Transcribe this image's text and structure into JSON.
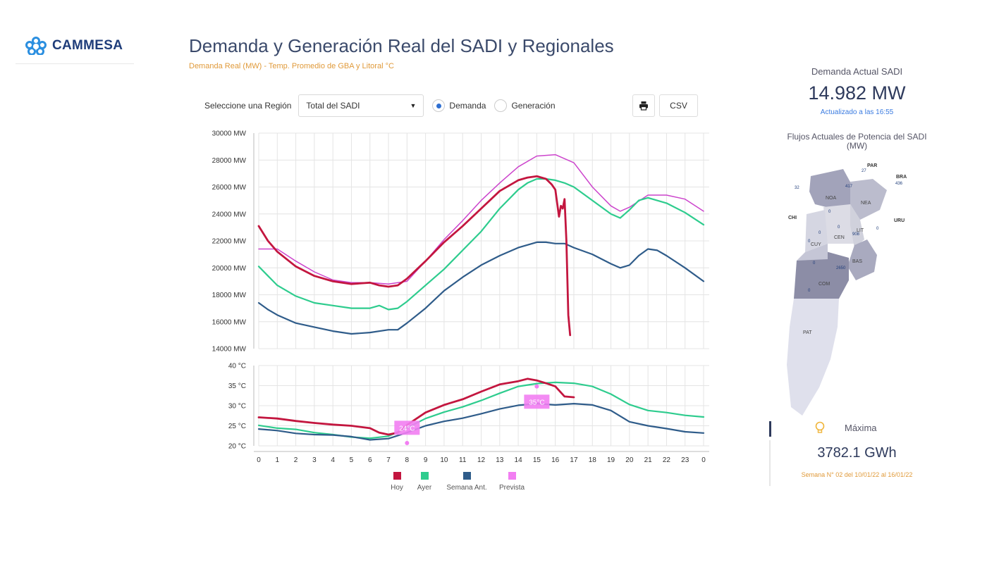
{
  "brand": {
    "name": "CAMMESA",
    "logo_icon": "flower-icon",
    "color": "#2b8fe0"
  },
  "header": {
    "title": "Demanda y Generación Real del SADI y Regionales",
    "subtitle": "Demanda Real (MW) - Temp. Promedio de GBA y Litoral °C"
  },
  "controls": {
    "region_label": "Seleccione una Región",
    "region_value": "Total del SADI",
    "radio_demand": "Demanda",
    "radio_generation": "Generación",
    "selected": "Demanda",
    "print_icon": "printer-icon",
    "csv_label": "CSV"
  },
  "chart_data": [
    {
      "type": "line",
      "ylim": [
        14000,
        30000
      ],
      "yticks": [
        "30000 MW",
        "28000 MW",
        "26000 MW",
        "24000 MW",
        "22000 MW",
        "20000 MW",
        "18000 MW",
        "16000 MW",
        "14000 MW"
      ],
      "ytick_values": [
        30000,
        28000,
        26000,
        24000,
        22000,
        20000,
        18000,
        16000,
        14000
      ],
      "grid": true,
      "series": [
        {
          "name": "Prevista",
          "color": "#cc44cc",
          "x": [
            0,
            1,
            2,
            3,
            4,
            5,
            6,
            7,
            8,
            9,
            10,
            11,
            12,
            13,
            14,
            15,
            16,
            17,
            18,
            19,
            19.5,
            20,
            21,
            22,
            23,
            24
          ],
          "y": [
            21400,
            21400,
            20500,
            19700,
            19100,
            18900,
            18900,
            18800,
            19000,
            20500,
            22100,
            23500,
            25000,
            26300,
            27500,
            28300,
            28400,
            27800,
            26000,
            24600,
            24200,
            24500,
            25400,
            25400,
            25100,
            24200
          ]
        },
        {
          "name": "Ayer",
          "color": "#2ecc8e",
          "x": [
            0,
            0.5,
            1,
            2,
            3,
            4,
            5,
            6,
            6.5,
            7,
            7.5,
            8,
            9,
            10,
            11,
            12,
            13,
            14,
            14.5,
            15,
            15.5,
            16,
            16.5,
            17,
            18,
            19,
            19.5,
            20,
            20.5,
            21,
            22,
            23,
            24
          ],
          "y": [
            20100,
            19400,
            18700,
            17900,
            17400,
            17200,
            17000,
            17000,
            17200,
            16900,
            17000,
            17500,
            18700,
            19900,
            21300,
            22700,
            24400,
            25800,
            26300,
            26600,
            26600,
            26500,
            26300,
            26000,
            25000,
            24000,
            23700,
            24300,
            25000,
            25200,
            24800,
            24100,
            23200
          ]
        },
        {
          "name": "Semana Ant.",
          "color": "#2f5c8a",
          "x": [
            0,
            0.5,
            1,
            2,
            3,
            4,
            5,
            6,
            7,
            7.5,
            8,
            9,
            10,
            11,
            12,
            13,
            14,
            15,
            15.5,
            16,
            16.5,
            17,
            18,
            19,
            19.5,
            20,
            20.5,
            21,
            21.5,
            22,
            23,
            24
          ],
          "y": [
            17400,
            16900,
            16500,
            15900,
            15600,
            15300,
            15100,
            15200,
            15400,
            15400,
            15900,
            17000,
            18300,
            19300,
            20200,
            20900,
            21500,
            21900,
            21900,
            21800,
            21800,
            21500,
            21000,
            20300,
            20000,
            20200,
            20900,
            21400,
            21300,
            20900,
            20000,
            19000
          ]
        },
        {
          "name": "Hoy",
          "color": "#c3163f",
          "x": [
            0,
            0.5,
            1,
            2,
            3,
            4,
            5,
            6,
            6.5,
            7,
            7.5,
            8,
            9,
            10,
            11,
            12,
            13,
            14,
            14.5,
            15,
            15.5,
            15.8,
            16,
            16.2,
            16.3,
            16.4,
            16.5,
            16.6,
            16.7,
            16.8
          ],
          "y": [
            23100,
            22000,
            21200,
            20100,
            19400,
            19000,
            18800,
            18900,
            18700,
            18600,
            18700,
            19200,
            20500,
            21900,
            23100,
            24400,
            25700,
            26500,
            26700,
            26800,
            26600,
            26200,
            25800,
            23800,
            24600,
            24400,
            25100,
            22000,
            16500,
            15000
          ]
        }
      ]
    },
    {
      "type": "line",
      "ylim": [
        20,
        40
      ],
      "yticks": [
        "40 °C",
        "35 °C",
        "30 °C",
        "25 °C",
        "20 °C"
      ],
      "ytick_values": [
        40,
        35,
        30,
        25,
        20
      ],
      "categories": [
        "0",
        "1",
        "2",
        "3",
        "4",
        "5",
        "6",
        "7",
        "8",
        "9",
        "10",
        "11",
        "12",
        "13",
        "14",
        "15",
        "16",
        "17",
        "18",
        "19",
        "20",
        "21",
        "22",
        "23",
        "0"
      ],
      "grid": true,
      "series": [
        {
          "name": "Ayer",
          "color": "#2ecc8e",
          "x": [
            0,
            1,
            2,
            3,
            4,
            5,
            6,
            7,
            8,
            9,
            10,
            11,
            12,
            13,
            14,
            15,
            16,
            17,
            18,
            19,
            20,
            21,
            22,
            23,
            24
          ],
          "y": [
            25.1,
            24.4,
            24.1,
            23.3,
            22.8,
            22.2,
            21.9,
            22.4,
            24.5,
            26.8,
            28.4,
            29.7,
            31.3,
            33.1,
            34.8,
            35.5,
            35.8,
            35.6,
            34.8,
            32.9,
            30.3,
            28.8,
            28.3,
            27.6,
            27.2
          ]
        },
        {
          "name": "Semana Ant.",
          "color": "#2f5c8a",
          "x": [
            0,
            1,
            2,
            3,
            4,
            5,
            6,
            7,
            8,
            9,
            10,
            11,
            12,
            13,
            14,
            15,
            16,
            17,
            18,
            19,
            20,
            21,
            22,
            23,
            24
          ],
          "y": [
            24.2,
            23.8,
            23.1,
            22.8,
            22.7,
            22.3,
            21.5,
            21.8,
            23.3,
            25.0,
            26.1,
            26.9,
            28.0,
            29.2,
            30.1,
            30.5,
            30.2,
            30.5,
            30.2,
            28.8,
            26.0,
            25.0,
            24.3,
            23.5,
            23.2
          ]
        },
        {
          "name": "Hoy",
          "color": "#c3163f",
          "x": [
            0,
            1,
            2,
            3,
            4,
            5,
            6,
            6.5,
            7,
            7.5,
            8,
            9,
            10,
            11,
            12,
            13,
            14,
            14.5,
            15,
            15.5,
            16,
            16.5,
            17
          ],
          "y": [
            27.1,
            26.8,
            26.2,
            25.7,
            25.3,
            25.0,
            24.4,
            23.3,
            22.8,
            23.3,
            25.2,
            28.3,
            30.2,
            31.6,
            33.5,
            35.3,
            36.1,
            36.7,
            36.3,
            35.6,
            34.8,
            32.3,
            32.1
          ]
        }
      ],
      "forecast_points": [
        {
          "x": 8,
          "y": 24.5,
          "label": "24°C"
        },
        {
          "x": 15,
          "y": 31,
          "label": "35°C"
        }
      ],
      "forecast_markers": [
        {
          "x": 8,
          "y": 20.7
        },
        {
          "x": 15,
          "y": 34.8
        }
      ],
      "legend": [
        {
          "name": "Hoy",
          "color": "#c3163f"
        },
        {
          "name": "Ayer",
          "color": "#2ecc8e"
        },
        {
          "name": "Semana Ant.",
          "color": "#2f5c8a"
        },
        {
          "name": "Prevista",
          "color": "#f27ef2"
        }
      ],
      "legend_placement": "bottom"
    }
  ],
  "sidebar": {
    "demand_title": "Demanda Actual SADI",
    "demand_value": "14.982 MW",
    "updated": "Actualizado a las 16:55",
    "flows_title": "Flujos Actuales de Potencia del SADI (MW)",
    "map_regions": [
      "NOA",
      "NEA",
      "CEN",
      "LIT",
      "CUY",
      "BAS",
      "COM",
      "PAT"
    ],
    "map_labels": [
      "PAR",
      "BRA",
      "CHI",
      "URU"
    ],
    "map_values": [
      "32",
      "27",
      "436",
      "417",
      "0",
      "0",
      "0",
      "908",
      "0",
      "0",
      "2650",
      "0",
      "0"
    ],
    "max_icon": "lightbulb-icon",
    "max_label": "Máxima",
    "max_value": "3782.1 GWh",
    "week_text": "Semana N° 02 del 10/01/22 al 16/01/22"
  }
}
